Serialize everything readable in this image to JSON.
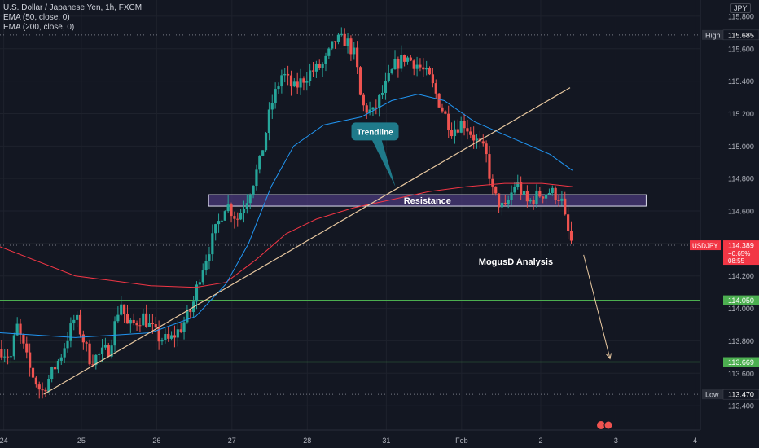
{
  "legend": {
    "title": "U.S. Dollar / Japanese Yen, 1h, FXCM",
    "ema50": "EMA (50, close, 0)",
    "ema200": "EMA (200, close, 0)"
  },
  "currency": "JPY",
  "colors": {
    "background": "#131722",
    "up": "#26a69a",
    "down": "#ef5350",
    "ema50": "#2196f3",
    "ema200": "#f23645",
    "trendline": "#e8c8a0",
    "support": "#4caf50",
    "resistance_fill": "#4a3a7a",
    "callout": "#1f7a8a",
    "price_tag": "#f23645"
  },
  "chart_data": {
    "type": "candlestick",
    "symbol": "USDJPY",
    "timeframe": "1h",
    "ylim": [
      113.25,
      115.9
    ],
    "y_ticks": [
      115.8,
      115.6,
      115.4,
      115.2,
      115.0,
      114.8,
      114.6,
      114.4,
      114.2,
      114.0,
      113.8,
      113.6,
      113.4
    ],
    "y_tick_labels": [
      "115.800",
      "115.600",
      "115.400",
      "115.200",
      "115.000",
      "114.800",
      "114.600",
      "114.400",
      "114.200",
      "114.000",
      "113.800",
      "113.600",
      "113.400"
    ],
    "x_range": [
      0,
      9.3
    ],
    "x_ticks": [
      {
        "pos": 0.05,
        "label": "24"
      },
      {
        "pos": 1.08,
        "label": "25"
      },
      {
        "pos": 2.08,
        "label": "26"
      },
      {
        "pos": 3.08,
        "label": "27"
      },
      {
        "pos": 4.08,
        "label": "28"
      },
      {
        "pos": 5.13,
        "label": "31"
      },
      {
        "pos": 6.13,
        "label": "Feb"
      },
      {
        "pos": 7.18,
        "label": "2"
      },
      {
        "pos": 8.18,
        "label": "3"
      },
      {
        "pos": 9.23,
        "label": "4"
      }
    ],
    "price_path": [
      [
        0.0,
        113.75
      ],
      [
        0.15,
        113.7
      ],
      [
        0.22,
        113.9
      ],
      [
        0.4,
        113.62
      ],
      [
        0.55,
        113.48
      ],
      [
        0.8,
        113.7
      ],
      [
        1.0,
        113.95
      ],
      [
        1.2,
        113.68
      ],
      [
        1.45,
        113.75
      ],
      [
        1.6,
        114.05
      ],
      [
        1.7,
        113.88
      ],
      [
        1.9,
        113.95
      ],
      [
        2.1,
        113.82
      ],
      [
        2.25,
        113.8
      ],
      [
        2.4,
        113.88
      ],
      [
        2.55,
        114.0
      ],
      [
        2.65,
        114.2
      ],
      [
        2.8,
        114.4
      ],
      [
        3.0,
        114.65
      ],
      [
        3.15,
        114.55
      ],
      [
        3.3,
        114.7
      ],
      [
        3.45,
        114.9
      ],
      [
        3.6,
        115.25
      ],
      [
        3.75,
        115.45
      ],
      [
        3.9,
        115.35
      ],
      [
        4.1,
        115.45
      ],
      [
        4.3,
        115.5
      ],
      [
        4.45,
        115.65
      ],
      [
        4.6,
        115.65
      ],
      [
        4.72,
        115.55
      ],
      [
        4.8,
        115.25
      ],
      [
        4.95,
        115.2
      ],
      [
        5.1,
        115.35
      ],
      [
        5.25,
        115.5
      ],
      [
        5.38,
        115.55
      ],
      [
        5.55,
        115.5
      ],
      [
        5.7,
        115.42
      ],
      [
        5.85,
        115.25
      ],
      [
        6.0,
        115.1
      ],
      [
        6.15,
        115.15
      ],
      [
        6.3,
        115.05
      ],
      [
        6.45,
        114.95
      ],
      [
        6.55,
        114.7
      ],
      [
        6.7,
        114.6
      ],
      [
        6.85,
        114.78
      ],
      [
        7.0,
        114.65
      ],
      [
        7.15,
        114.7
      ],
      [
        7.3,
        114.72
      ],
      [
        7.45,
        114.68
      ],
      [
        7.52,
        114.5
      ],
      [
        7.6,
        114.39
      ]
    ],
    "ema50": [
      [
        0.0,
        113.85
      ],
      [
        1.0,
        113.82
      ],
      [
        2.0,
        113.85
      ],
      [
        2.6,
        113.95
      ],
      [
        3.0,
        114.15
      ],
      [
        3.3,
        114.4
      ],
      [
        3.6,
        114.75
      ],
      [
        3.9,
        115.0
      ],
      [
        4.3,
        115.13
      ],
      [
        4.8,
        115.18
      ],
      [
        5.2,
        115.28
      ],
      [
        5.55,
        115.32
      ],
      [
        5.9,
        115.28
      ],
      [
        6.3,
        115.15
      ],
      [
        6.8,
        115.05
      ],
      [
        7.3,
        114.95
      ],
      [
        7.6,
        114.85
      ]
    ],
    "ema200": [
      [
        0.0,
        114.38
      ],
      [
        1.0,
        114.2
      ],
      [
        2.0,
        114.14
      ],
      [
        2.6,
        114.13
      ],
      [
        3.0,
        114.16
      ],
      [
        3.4,
        114.3
      ],
      [
        3.8,
        114.46
      ],
      [
        4.2,
        114.55
      ],
      [
        4.7,
        114.62
      ],
      [
        5.2,
        114.67
      ],
      [
        5.7,
        114.72
      ],
      [
        6.2,
        114.75
      ],
      [
        6.7,
        114.77
      ],
      [
        7.2,
        114.77
      ],
      [
        7.6,
        114.75
      ]
    ],
    "trendline": {
      "from": [
        0.58,
        113.47
      ],
      "to": [
        7.57,
        115.36
      ]
    },
    "resistance_zone": {
      "x": [
        2.77,
        8.58
      ],
      "y": [
        114.63,
        114.7
      ],
      "label": "Resistance"
    },
    "support_levels": [
      {
        "value": 114.05,
        "label": "114.050"
      },
      {
        "value": 113.669,
        "label": "113.669"
      }
    ],
    "extremes": [
      {
        "name": "High",
        "value": 115.685,
        "label": "115.685"
      },
      {
        "name": "Low",
        "value": 113.47,
        "label": "113.470"
      }
    ],
    "projection_arrow": {
      "from": [
        7.75,
        114.33
      ],
      "to": [
        8.1,
        113.69
      ]
    },
    "last_price": {
      "symbol": "USDJPY",
      "value": 114.389,
      "label": "114.389",
      "change": "+0.65%",
      "countdown": "08:55"
    },
    "annotations": [
      {
        "name": "trendline-callout",
        "text": "Trendline",
        "x": 4.98,
        "y": 115.09,
        "pointer": [
          5.25,
          114.75
        ]
      },
      {
        "name": "author-note",
        "text": "MogusD Analysis",
        "x": 6.85,
        "y": 114.27
      }
    ]
  }
}
